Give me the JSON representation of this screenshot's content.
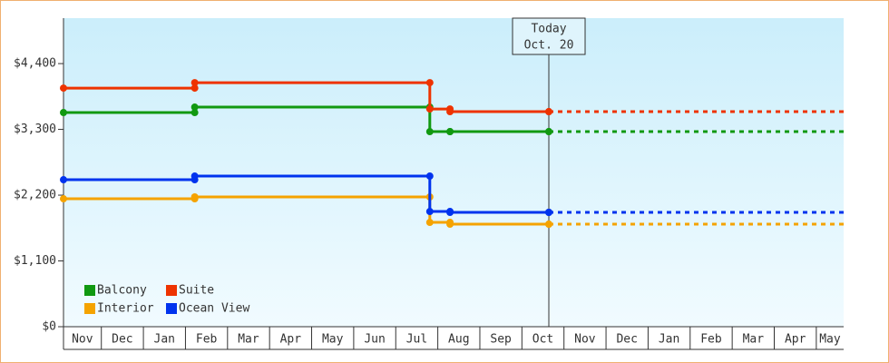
{
  "chart_data": {
    "type": "step-line",
    "x": [
      0.1,
      3.22,
      8.81,
      9.29,
      11.64
    ],
    "xlim": [
      0.1,
      18.65
    ],
    "xticks": [
      {
        "value": 0.5,
        "label": "Nov"
      },
      {
        "value": 1.5,
        "label": "Dec"
      },
      {
        "value": 2.5,
        "label": "Jan"
      },
      {
        "value": 3.5,
        "label": "Feb"
      },
      {
        "value": 4.5,
        "label": "Mar"
      },
      {
        "value": 5.5,
        "label": "Apr"
      },
      {
        "value": 6.5,
        "label": "May"
      },
      {
        "value": 7.5,
        "label": "Jun"
      },
      {
        "value": 8.5,
        "label": "Jul"
      },
      {
        "value": 9.5,
        "label": "Aug"
      },
      {
        "value": 10.5,
        "label": "Sep"
      },
      {
        "value": 11.5,
        "label": "Oct"
      },
      {
        "value": 12.5,
        "label": "Nov"
      },
      {
        "value": 13.5,
        "label": "Dec"
      },
      {
        "value": 14.5,
        "label": "Jan"
      },
      {
        "value": 15.5,
        "label": "Feb"
      },
      {
        "value": 16.5,
        "label": "Mar"
      },
      {
        "value": 17.5,
        "label": "Apr"
      },
      {
        "value": 18.5,
        "label": "May"
      }
    ],
    "ylim": [
      0,
      5160
    ],
    "yticks": [
      {
        "value": 0,
        "label": "$0"
      },
      {
        "value": 1100,
        "label": "$1,100"
      },
      {
        "value": 2200,
        "label": "$2,200"
      },
      {
        "value": 3300,
        "label": "$3,300"
      },
      {
        "value": 4400,
        "label": "$4,400"
      }
    ],
    "series": [
      {
        "name": "Balcony",
        "color": "#119911",
        "values": [
          3581,
          3672,
          3262,
          3262,
          3262
        ]
      },
      {
        "name": "Suite",
        "color": "#ee3300",
        "values": [
          3990,
          4081,
          3641,
          3596,
          3596
        ]
      },
      {
        "name": "Interior",
        "color": "#f5a300",
        "values": [
          2139,
          2170,
          1745,
          1714,
          1714
        ]
      },
      {
        "name": "Ocean View",
        "color": "#0033ee",
        "values": [
          2458,
          2519,
          1927,
          1912,
          1912
        ]
      }
    ],
    "annotation": {
      "x": 11.64,
      "lines": [
        "Today",
        "Oct. 20"
      ]
    },
    "legend": "lower-left"
  }
}
